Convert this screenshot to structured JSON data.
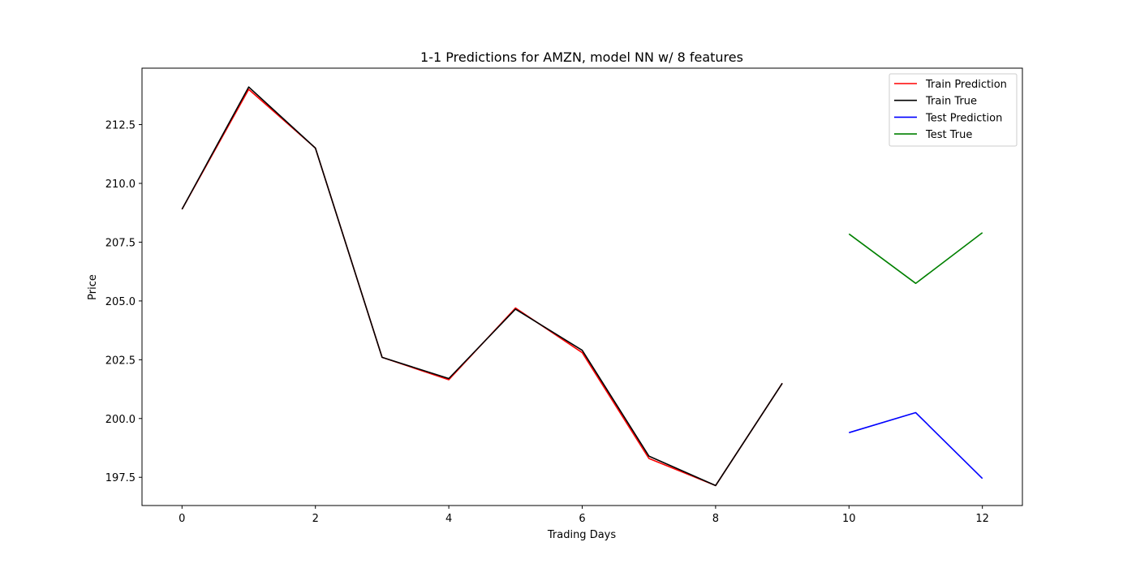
{
  "chart_data": {
    "type": "line",
    "title": "1-1 Predictions for AMZN, model NN w/ 8 features",
    "xlabel": "Trading Days",
    "ylabel": "Price",
    "xlim": [
      -0.6,
      12.6
    ],
    "ylim": [
      196.3,
      214.9
    ],
    "xticks": [
      0,
      2,
      4,
      6,
      8,
      10,
      12
    ],
    "yticks": [
      197.5,
      200.0,
      202.5,
      205.0,
      207.5,
      210.0,
      212.5
    ],
    "ytick_labels": [
      "197.5",
      "200.0",
      "202.5",
      "205.0",
      "207.5",
      "210.0",
      "212.5"
    ],
    "grid": false,
    "legend_position": "top-right",
    "series": [
      {
        "name": "Train Prediction",
        "color": "#ff0000",
        "x": [
          0,
          1,
          2,
          3,
          4,
          5,
          6,
          7,
          8,
          9
        ],
        "y": [
          208.9,
          214.0,
          211.5,
          202.6,
          201.65,
          204.7,
          202.8,
          198.3,
          197.15,
          201.5
        ]
      },
      {
        "name": "Train True",
        "color": "#000000",
        "x": [
          0,
          1,
          2,
          3,
          4,
          5,
          6,
          7,
          8,
          9
        ],
        "y": [
          208.9,
          214.1,
          211.5,
          202.6,
          201.7,
          204.65,
          202.9,
          198.4,
          197.15,
          201.5
        ]
      },
      {
        "name": "Test Prediction",
        "color": "#0000ff",
        "x": [
          10,
          11,
          12
        ],
        "y": [
          199.4,
          200.25,
          197.45
        ]
      },
      {
        "name": "Test True",
        "color": "#008000",
        "x": [
          10,
          11,
          12
        ],
        "y": [
          207.85,
          205.75,
          207.9
        ]
      }
    ]
  }
}
